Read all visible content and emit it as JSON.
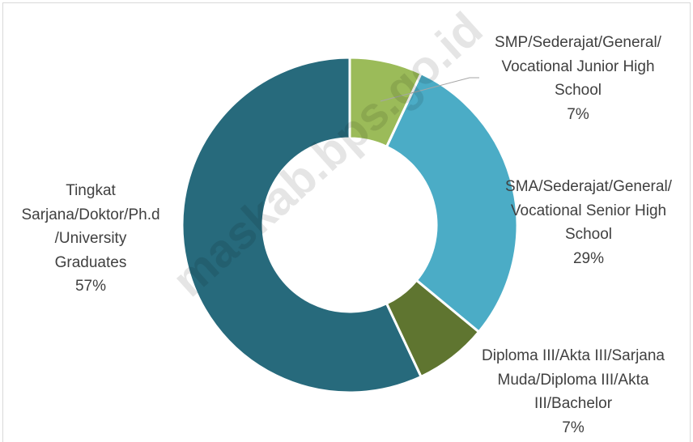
{
  "chart_data": {
    "type": "donut",
    "categories": [
      "SMP/Sederajat/General/\nVocational Junior High\nSchool",
      "SMA/Sederajat/General/\nVocational Senior High\nSchool",
      "Diploma III/Akta III/Sarjana\nMuda/Diploma III/Akta\nIII/Bachelor",
      "Tingkat\nSarjana/Doktor/Ph.d\n/University\nGraduates"
    ],
    "values": [
      7,
      29,
      7,
      57
    ],
    "value_labels": [
      "7%",
      "29%",
      "7%",
      "57%"
    ],
    "colors": [
      "#9bbb59",
      "#4bacc6",
      "#5f7530",
      "#276a7c"
    ],
    "watermark": "maskab.bps.go.id"
  }
}
